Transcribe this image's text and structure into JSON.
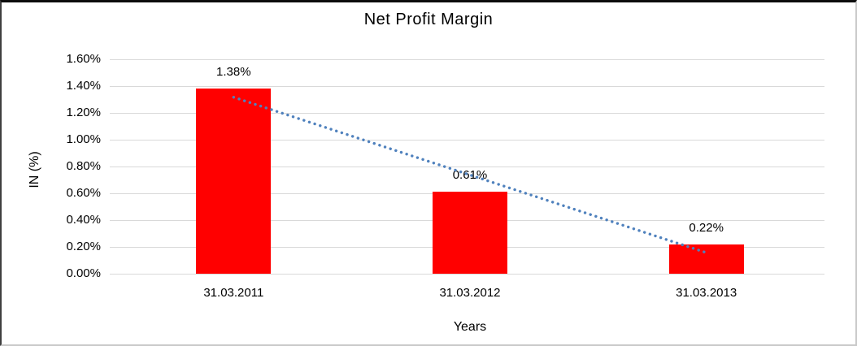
{
  "chart_data": {
    "type": "bar",
    "title": "Net Profit Margin",
    "xlabel": "Years",
    "ylabel": "IN (%)",
    "categories": [
      "31.03.2011",
      "31.03.2012",
      "31.03.2013"
    ],
    "values": [
      1.38,
      0.61,
      0.22
    ],
    "data_labels": [
      "1.38%",
      "0.61%",
      "0.22%"
    ],
    "ylim": [
      0,
      1.6
    ],
    "yticks": [
      {
        "value": 1.6,
        "label": "1.60%"
      },
      {
        "value": 1.4,
        "label": "1.40%"
      },
      {
        "value": 1.2,
        "label": "1.20%"
      },
      {
        "value": 1.0,
        "label": "1.00%"
      },
      {
        "value": 0.8,
        "label": "0.80%"
      },
      {
        "value": 0.6,
        "label": "0.60%"
      },
      {
        "value": 0.4,
        "label": "0.40%"
      },
      {
        "value": 0.2,
        "label": "0.20%"
      },
      {
        "value": 0.0,
        "label": "0.00%"
      }
    ],
    "grid": true,
    "legend": false,
    "trendline": {
      "type": "linear",
      "style": "dotted",
      "start_value": 1.317,
      "end_value": 0.157
    },
    "colors": {
      "bar": "#FF0000",
      "trendline": "#4F81BD",
      "gridline": "#D9D9D9",
      "text": "#000000"
    }
  }
}
